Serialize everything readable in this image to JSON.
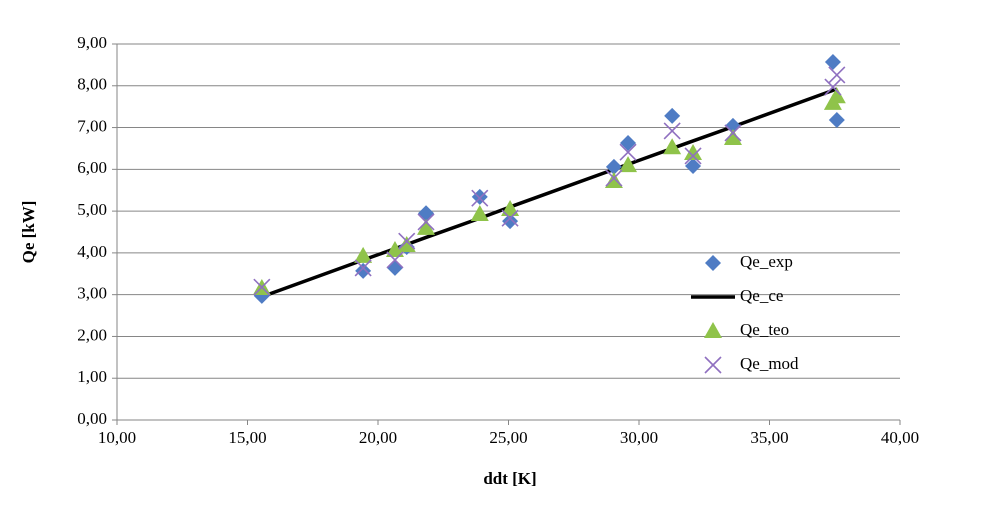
{
  "chart_data": {
    "type": "scatter",
    "xlabel": "ddt  [K]",
    "ylabel": "Qe [kW]",
    "x": [
      15.55,
      19.43,
      20.65,
      21.1,
      21.84,
      23.9,
      25.06,
      29.04,
      29.58,
      31.27,
      32.07,
      33.6,
      37.43,
      37.58
    ],
    "series": [
      {
        "name": "Qe_exp",
        "color": "#4f7cc4",
        "marker": "diamond",
        "values": [
          2.97,
          3.57,
          3.64,
          4.14,
          4.95,
          5.34,
          4.76,
          6.06,
          6.63,
          7.28,
          6.08,
          7.04,
          8.57,
          7.18
        ]
      },
      {
        "name": "Qe_ce",
        "color": "#000000",
        "marker": "line",
        "values": [
          2.95,
          3.83,
          4.1,
          4.2,
          4.37,
          4.83,
          5.1,
          6.0,
          6.12,
          6.5,
          6.68,
          7.02,
          7.89,
          7.92
        ]
      },
      {
        "name": "Qe_teo",
        "color": "#8fc34a",
        "marker": "triangle",
        "values": [
          3.16,
          3.93,
          4.07,
          4.19,
          4.6,
          4.93,
          5.05,
          5.72,
          6.1,
          6.53,
          6.39,
          6.75,
          7.59,
          7.75
        ]
      },
      {
        "name": "Qe_mod",
        "color": "#8f70c0",
        "marker": "cross",
        "values": [
          3.18,
          3.64,
          3.83,
          4.28,
          4.74,
          5.31,
          4.83,
          5.79,
          6.41,
          6.92,
          6.32,
          6.87,
          7.97,
          8.26
        ]
      }
    ],
    "xlim": [
      10,
      40
    ],
    "xticks": [
      {
        "value": 10,
        "label": "10,00"
      },
      {
        "value": 15,
        "label": "15,00"
      },
      {
        "value": 20,
        "label": "20,00"
      },
      {
        "value": 25,
        "label": "25,00"
      },
      {
        "value": 30,
        "label": "30,00"
      },
      {
        "value": 35,
        "label": "35,00"
      },
      {
        "value": 40,
        "label": "40,00"
      }
    ],
    "ylim": [
      0,
      9
    ],
    "yticks": [
      {
        "value": 0,
        "label": "0,00"
      },
      {
        "value": 1,
        "label": "1,00"
      },
      {
        "value": 2,
        "label": "2,00"
      },
      {
        "value": 3,
        "label": "3,00"
      },
      {
        "value": 4,
        "label": "4,00"
      },
      {
        "value": 5,
        "label": "5,00"
      },
      {
        "value": 6,
        "label": "6,00"
      },
      {
        "value": 7,
        "label": "7,00"
      },
      {
        "value": 8,
        "label": "8,00"
      },
      {
        "value": 9,
        "label": "9,00"
      }
    ],
    "grid": true,
    "legend": "right"
  }
}
